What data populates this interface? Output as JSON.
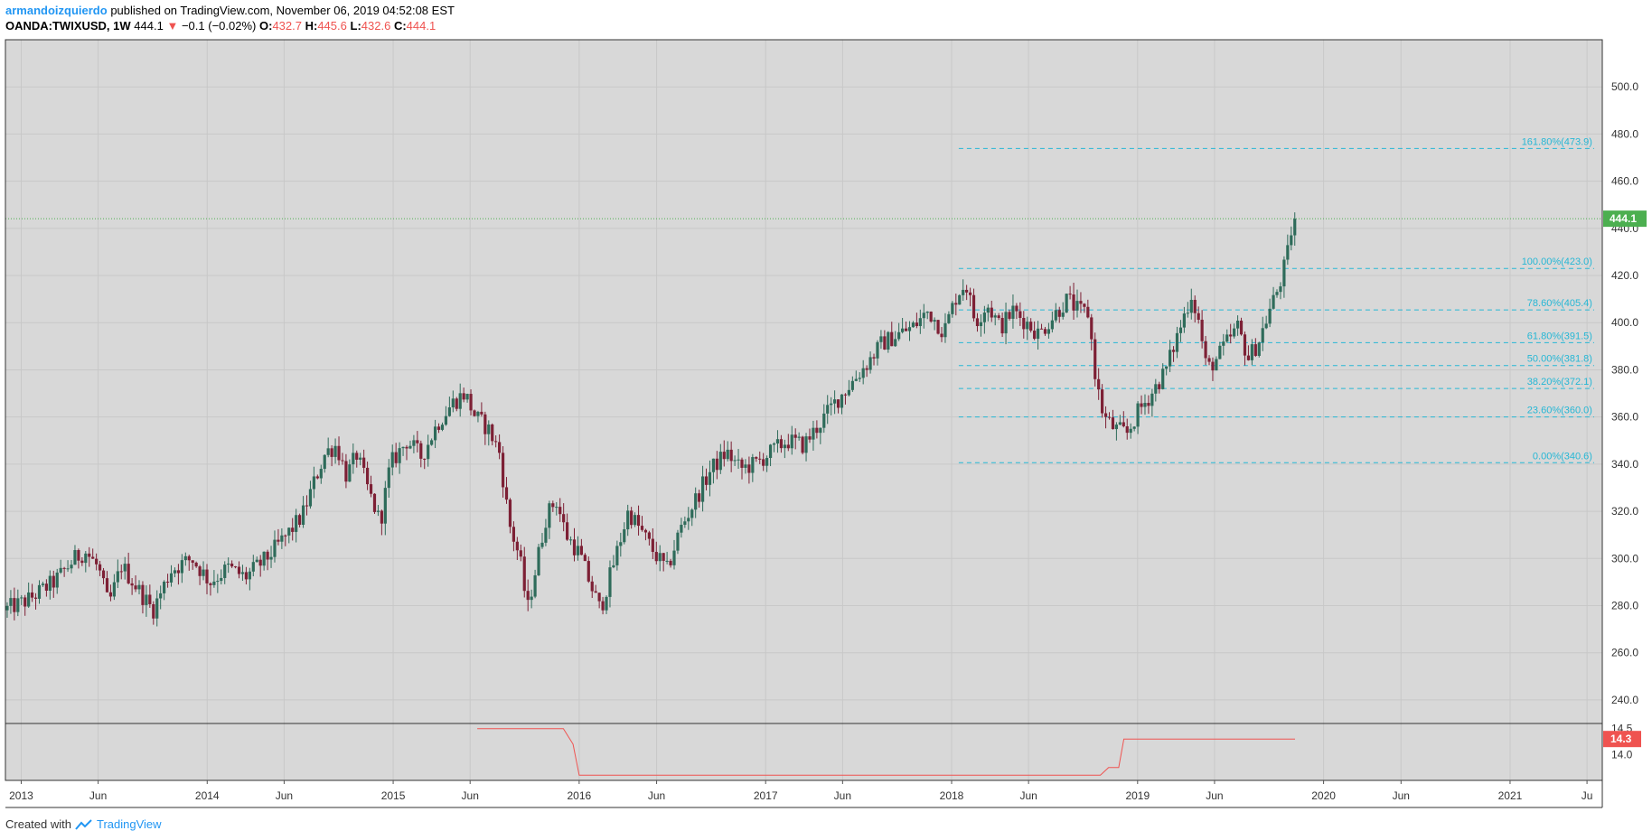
{
  "header": {
    "author": "armandoizquierdo",
    "published_text": "published on TradingView.com, November 06, 2019 04:52:08 EST",
    "symbol": "OANDA:TWIXUSD, 1W",
    "last": "444.1",
    "change": "−0.1 (−0.02%)",
    "o_label": "O:",
    "o_value": "432.7",
    "h_label": "H:",
    "h_value": "445.6",
    "l_label": "L:",
    "l_value": "432.6",
    "c_label": "C:",
    "c_value": "444.1"
  },
  "footer": {
    "created_with": "Created with",
    "brand": "TradingView"
  },
  "colors": {
    "background": "#d8d8d8",
    "grid": "#c8c8c8",
    "up": "#2e6b5a",
    "down": "#7d2035",
    "fib": "#26b7d5",
    "last_price": "#4caf50",
    "indicator": "#ef5350",
    "axis_text": "#333333"
  },
  "chart_data": {
    "type": "candlestick",
    "title": "",
    "xlabel": "",
    "ylabel": "",
    "ylim": [
      230,
      520
    ],
    "y_ticks": [
      "500.0",
      "480.0",
      "460.0",
      "440.0",
      "420.0",
      "400.0",
      "380.0",
      "360.0",
      "340.0",
      "320.0",
      "300.0",
      "280.0",
      "260.0",
      "240.0"
    ],
    "x_ticks": [
      {
        "label": "2013",
        "date": "2013-01-01"
      },
      {
        "label": "Jun",
        "date": "2013-06-01"
      },
      {
        "label": "2014",
        "date": "2014-01-01"
      },
      {
        "label": "Jun",
        "date": "2014-06-01"
      },
      {
        "label": "2015",
        "date": "2015-01-01"
      },
      {
        "label": "Jun",
        "date": "2015-06-01"
      },
      {
        "label": "2016",
        "date": "2016-01-01"
      },
      {
        "label": "Jun",
        "date": "2016-06-01"
      },
      {
        "label": "2017",
        "date": "2017-01-01"
      },
      {
        "label": "Jun",
        "date": "2017-06-01"
      },
      {
        "label": "2018",
        "date": "2018-01-01"
      },
      {
        "label": "Jun",
        "date": "2018-06-01"
      },
      {
        "label": "2019",
        "date": "2019-01-01"
      },
      {
        "label": "Jun",
        "date": "2019-06-01"
      },
      {
        "label": "2020",
        "date": "2020-01-01"
      },
      {
        "label": "Jun",
        "date": "2020-06-01"
      },
      {
        "label": "2021",
        "date": "2021-01-01"
      },
      {
        "label": "Ju",
        "date": "2021-06-01"
      }
    ],
    "x_start": "2012-12-01",
    "x_end": "2021-07-01",
    "last_price": {
      "value": 444.1,
      "label": "444.1"
    },
    "price_path": [
      [
        "2012-12-01",
        278
      ],
      [
        "2013-01-15",
        282
      ],
      [
        "2013-03-10",
        290
      ],
      [
        "2013-04-20",
        300
      ],
      [
        "2013-05-10",
        303
      ],
      [
        "2013-06-05",
        296
      ],
      [
        "2013-06-25",
        280
      ],
      [
        "2013-07-20",
        297
      ],
      [
        "2013-08-25",
        286
      ],
      [
        "2013-09-20",
        278
      ],
      [
        "2013-10-25",
        295
      ],
      [
        "2013-12-05",
        300
      ],
      [
        "2014-01-10",
        290
      ],
      [
        "2014-02-15",
        296
      ],
      [
        "2014-03-20",
        292
      ],
      [
        "2014-05-01",
        300
      ],
      [
        "2014-06-10",
        310
      ],
      [
        "2014-07-10",
        318
      ],
      [
        "2014-08-05",
        334
      ],
      [
        "2014-08-25",
        345
      ],
      [
        "2014-09-15",
        348
      ],
      [
        "2014-10-05",
        335
      ],
      [
        "2014-10-25",
        344
      ],
      [
        "2014-11-15",
        330
      ],
      [
        "2014-12-10",
        315
      ],
      [
        "2014-12-30",
        340
      ],
      [
        "2015-02-01",
        350
      ],
      [
        "2015-03-01",
        343
      ],
      [
        "2015-04-01",
        357
      ],
      [
        "2015-05-01",
        366
      ],
      [
        "2015-05-25",
        370
      ],
      [
        "2015-06-15",
        360
      ],
      [
        "2015-07-10",
        355
      ],
      [
        "2015-08-01",
        345
      ],
      [
        "2015-08-20",
        315
      ],
      [
        "2015-09-10",
        300
      ],
      [
        "2015-09-25",
        278
      ],
      [
        "2015-10-15",
        300
      ],
      [
        "2015-11-01",
        318
      ],
      [
        "2015-11-20",
        325
      ],
      [
        "2015-12-10",
        310
      ],
      [
        "2016-01-05",
        302
      ],
      [
        "2016-01-25",
        290
      ],
      [
        "2016-02-15",
        278
      ],
      [
        "2016-03-15",
        300
      ],
      [
        "2016-04-10",
        320
      ],
      [
        "2016-05-10",
        310
      ],
      [
        "2016-06-01",
        302
      ],
      [
        "2016-06-25",
        295
      ],
      [
        "2016-07-20",
        312
      ],
      [
        "2016-08-20",
        325
      ],
      [
        "2016-09-20",
        338
      ],
      [
        "2016-10-20",
        345
      ],
      [
        "2016-11-15",
        338
      ],
      [
        "2016-12-15",
        340
      ],
      [
        "2017-01-15",
        345
      ],
      [
        "2017-02-15",
        350
      ],
      [
        "2017-03-20",
        348
      ],
      [
        "2017-04-20",
        357
      ],
      [
        "2017-05-20",
        366
      ],
      [
        "2017-06-20",
        374
      ],
      [
        "2017-07-20",
        382
      ],
      [
        "2017-08-20",
        391
      ],
      [
        "2017-09-20",
        395
      ],
      [
        "2017-10-20",
        398
      ],
      [
        "2017-11-20",
        405
      ],
      [
        "2017-12-20",
        396
      ],
      [
        "2018-01-15",
        412
      ],
      [
        "2018-02-01",
        417
      ],
      [
        "2018-02-20",
        400
      ],
      [
        "2018-03-15",
        408
      ],
      [
        "2018-04-10",
        398
      ],
      [
        "2018-05-05",
        405
      ],
      [
        "2018-06-01",
        400
      ],
      [
        "2018-06-25",
        395
      ],
      [
        "2018-07-20",
        402
      ],
      [
        "2018-08-20",
        410
      ],
      [
        "2018-09-10",
        405
      ],
      [
        "2018-09-30",
        404
      ],
      [
        "2018-10-15",
        375
      ],
      [
        "2018-10-30",
        360
      ],
      [
        "2018-11-20",
        355
      ],
      [
        "2018-12-15",
        353
      ],
      [
        "2019-01-05",
        362
      ],
      [
        "2019-02-01",
        370
      ],
      [
        "2019-03-01",
        380
      ],
      [
        "2019-04-01",
        400
      ],
      [
        "2019-04-20",
        412
      ],
      [
        "2019-05-05",
        400
      ],
      [
        "2019-05-20",
        380
      ],
      [
        "2019-06-10",
        385
      ],
      [
        "2019-06-30",
        392
      ],
      [
        "2019-07-20",
        398
      ],
      [
        "2019-08-10",
        385
      ],
      [
        "2019-08-30",
        392
      ],
      [
        "2019-09-20",
        405
      ],
      [
        "2019-10-10",
        416
      ],
      [
        "2019-10-25",
        428
      ],
      [
        "2019-11-06",
        444.1
      ]
    ],
    "fib_levels": [
      {
        "label": "161.80%(473.9)",
        "value": 473.9
      },
      {
        "label": "100.00%(423.0)",
        "value": 423.0
      },
      {
        "label": "78.60%(405.4)",
        "value": 405.4
      },
      {
        "label": "61.80%(391.5)",
        "value": 391.5
      },
      {
        "label": "50.00%(381.8)",
        "value": 381.8
      },
      {
        "label": "38.20%(372.1)",
        "value": 372.1
      },
      {
        "label": "23.60%(360.0)",
        "value": 360.0
      },
      {
        "label": "0.00%(340.6)",
        "value": 340.6
      }
    ],
    "fib_start": "2018-01-15",
    "fib_end": "2021-06-15",
    "indicator": {
      "ylim": [
        13.5,
        14.6
      ],
      "y_ticks": [
        "14.5",
        "14.0"
      ],
      "last_label": "14.3",
      "points": [
        [
          "2015-06-15",
          14.5
        ],
        [
          "2015-12-01",
          14.5
        ],
        [
          "2015-12-20",
          14.2
        ],
        [
          "2016-01-01",
          13.6
        ],
        [
          "2018-10-20",
          13.6
        ],
        [
          "2018-11-05",
          13.75
        ],
        [
          "2018-11-25",
          13.75
        ],
        [
          "2018-12-05",
          14.3
        ],
        [
          "2019-11-06",
          14.3
        ]
      ]
    }
  }
}
